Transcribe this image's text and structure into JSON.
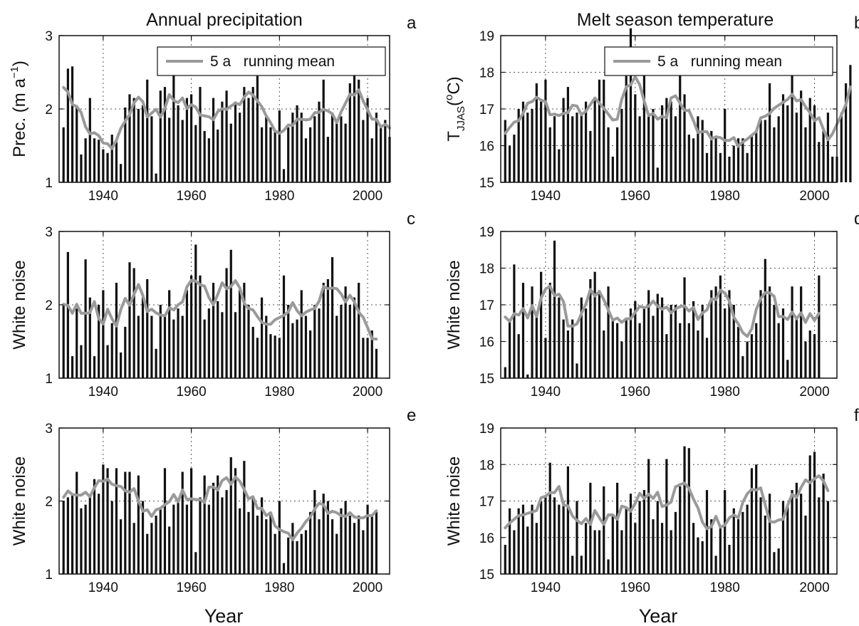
{
  "column_titles": [
    "Annual precipitation",
    "Melt season temperature"
  ],
  "x_axis_label": "Year",
  "legend": {
    "label": "5 a   running mean",
    "color": "#9a9a9a"
  },
  "colors": {
    "bar": "#111111",
    "mean_line": "#9a9a9a",
    "grid": "#555555",
    "frame": "#111111"
  },
  "chart_data": [
    {
      "panel": "a",
      "type": "bar",
      "col": 0,
      "row": 0,
      "ylabel": "Prec. (m a−1)",
      "ylabel_main": "Prec. (m a",
      "ylabel_sup": "−1",
      "ylabel_end": ")",
      "ylim": [
        1,
        3
      ],
      "yticks": [
        1,
        2,
        3
      ],
      "xlim": [
        1930,
        2005
      ],
      "xticks": [
        1940,
        1960,
        1980,
        2000
      ],
      "grid": true,
      "legend": "top-right",
      "series": [
        {
          "name": "Annual precipitation",
          "x_start": 1931,
          "values": [
            1.75,
            2.55,
            2.58,
            2.05,
            1.38,
            1.6,
            2.15,
            1.6,
            1.58,
            1.45,
            1.4,
            1.65,
            1.55,
            1.25,
            2.02,
            2.2,
            2.15,
            2.0,
            2.05,
            2.4,
            1.9,
            1.12,
            2.25,
            2.3,
            1.88,
            2.5,
            2.05,
            1.85,
            2.15,
            2.2,
            1.78,
            2.3,
            1.7,
            1.6,
            2.15,
            1.72,
            2.1,
            2.25,
            1.8,
            2.1,
            1.95,
            2.3,
            2.15,
            2.3,
            2.45,
            1.75,
            1.9,
            1.75,
            1.68,
            1.98,
            1.18,
            1.75,
            1.95,
            2.05,
            1.95,
            1.6,
            1.75,
            1.9,
            2.1,
            2.4,
            1.62,
            1.95,
            1.8,
            1.9,
            1.8,
            2.35,
            2.55,
            2.4,
            1.85,
            2.15,
            1.6,
            1.95,
            1.75,
            1.85,
            1.62
          ]
        }
      ]
    },
    {
      "panel": "b",
      "type": "bar",
      "col": 1,
      "row": 0,
      "ylabel": "TJJAS(°C)",
      "ylabel_main": "T",
      "ylabel_sub": "JJAS",
      "ylabel_end": "(°C)",
      "ylabel_super": "o",
      "ylim": [
        15,
        19
      ],
      "yticks": [
        15,
        16,
        17,
        18,
        19
      ],
      "xlim": [
        1930,
        2005
      ],
      "xticks": [
        1940,
        1960,
        1980,
        2000
      ],
      "grid": true,
      "legend": "top-right",
      "series": [
        {
          "name": "Melt season temperature",
          "x_start": 1931,
          "values": [
            16.7,
            16.0,
            16.3,
            17.0,
            17.2,
            16.9,
            17.0,
            17.7,
            17.2,
            17.8,
            16.5,
            16.8,
            15.9,
            17.3,
            17.6,
            16.8,
            16.9,
            16.9,
            17.2,
            16.4,
            17.3,
            17.8,
            17.8,
            16.5,
            15.7,
            16.5,
            17.0,
            17.9,
            19.2,
            17.4,
            16.8,
            18.1,
            16.8,
            17.0,
            15.4,
            17.1,
            17.3,
            17.2,
            16.8,
            18.1,
            17.4,
            16.3,
            16.2,
            16.8,
            16.7,
            15.8,
            16.4,
            16.2,
            15.8,
            17.0,
            15.7,
            16.0,
            16.2,
            16.2,
            15.8,
            16.3,
            16.4,
            16.7,
            16.7,
            17.7,
            16.5,
            16.8,
            17.4,
            17.1,
            18.1,
            16.9,
            17.5,
            16.5,
            17.3,
            17.1,
            16.1,
            16.4,
            16.9,
            15.7,
            15.7,
            16.9,
            17.7,
            18.2
          ]
        }
      ]
    },
    {
      "panel": "c",
      "type": "bar",
      "col": 0,
      "row": 1,
      "ylabel": "White noise",
      "ylim": [
        1,
        3
      ],
      "yticks": [
        1,
        2,
        3
      ],
      "xlim": [
        1930,
        2005
      ],
      "xticks": [
        1940,
        1960,
        1980,
        2000
      ],
      "grid": true,
      "series": [
        {
          "name": "White noise",
          "x_start": 1931,
          "values": [
            2.0,
            2.72,
            1.3,
            1.95,
            1.45,
            2.62,
            2.1,
            1.3,
            2.0,
            2.2,
            1.45,
            1.75,
            2.3,
            1.35,
            1.7,
            2.58,
            2.5,
            1.85,
            2.1,
            2.35,
            1.85,
            1.4,
            2.0,
            1.85,
            2.2,
            1.8,
            1.95,
            1.85,
            2.2,
            2.4,
            2.82,
            2.4,
            1.8,
            1.95,
            2.3,
            2.05,
            1.9,
            2.5,
            2.75,
            1.9,
            2.2,
            2.3,
            2.0,
            1.7,
            1.55,
            2.1,
            1.85,
            1.6,
            1.58,
            1.55,
            2.4,
            2.0,
            1.75,
            1.8,
            2.2,
            1.85,
            1.65,
            2.0,
            1.95,
            2.3,
            2.35,
            2.65,
            1.85,
            2.0,
            2.25,
            2.0,
            2.1,
            2.3,
            1.55,
            1.55,
            1.65,
            1.4
          ]
        }
      ]
    },
    {
      "panel": "d",
      "type": "bar",
      "col": 1,
      "row": 1,
      "ylabel": "White noise",
      "ylim": [
        15,
        19
      ],
      "yticks": [
        15,
        16,
        17,
        18,
        19
      ],
      "xlim": [
        1930,
        2005
      ],
      "xticks": [
        1940,
        1960,
        1980,
        2000
      ],
      "grid": true,
      "series": [
        {
          "name": "White noise",
          "x_start": 1931,
          "values": [
            15.3,
            16.6,
            18.1,
            16.2,
            17.6,
            15.1,
            17.5,
            16.8,
            17.9,
            16.1,
            17.6,
            18.75,
            17.2,
            16.6,
            16.3,
            16.6,
            15.4,
            17.2,
            16.9,
            17.7,
            17.9,
            17.4,
            16.3,
            17.5,
            16.6,
            16.5,
            16.0,
            16.6,
            16.9,
            17.1,
            16.5,
            16.9,
            17.4,
            16.7,
            17.3,
            17.2,
            16.2,
            17.0,
            17.0,
            16.5,
            17.75,
            16.5,
            17.1,
            16.3,
            17.0,
            16.1,
            17.4,
            17.5,
            17.8,
            16.9,
            17.4,
            17.0,
            16.4,
            15.6,
            16.0,
            16.2,
            16.5,
            17.4,
            18.25,
            17.5,
            17.0,
            16.5,
            16.9,
            15.5,
            17.5,
            16.6,
            17.5,
            16.0,
            16.3,
            16.2,
            17.8
          ]
        }
      ]
    },
    {
      "panel": "e",
      "type": "bar",
      "col": 0,
      "row": 2,
      "ylabel": "White noise",
      "ylim": [
        1,
        3
      ],
      "yticks": [
        1,
        2,
        3
      ],
      "xlim": [
        1930,
        2005
      ],
      "xticks": [
        1940,
        1960,
        1980,
        2000
      ],
      "grid": true,
      "series": [
        {
          "name": "White noise",
          "x_start": 1931,
          "values": [
            2.0,
            2.05,
            2.1,
            2.4,
            1.9,
            1.95,
            2.05,
            2.3,
            2.1,
            2.5,
            2.45,
            2.0,
            2.45,
            1.75,
            2.4,
            2.4,
            1.7,
            2.35,
            2.0,
            1.55,
            1.7,
            1.8,
            1.9,
            2.45,
            1.65,
            1.95,
            2.0,
            2.4,
            1.95,
            2.45,
            1.3,
            2.05,
            2.35,
            1.95,
            2.25,
            2.35,
            2.05,
            2.15,
            2.6,
            2.45,
            1.9,
            2.55,
            1.85,
            2.05,
            1.8,
            2.05,
            1.75,
            1.85,
            1.55,
            2.0,
            1.15,
            1.5,
            1.7,
            1.45,
            1.55,
            1.6,
            1.85,
            2.15,
            1.75,
            2.1,
            2.0,
            1.75,
            1.55,
            1.9,
            2.0,
            1.8,
            1.7,
            1.8,
            1.6,
            1.95,
            1.8,
            1.85
          ]
        }
      ]
    },
    {
      "panel": "f",
      "type": "bar",
      "col": 1,
      "row": 2,
      "ylabel": "White noise",
      "ylim": [
        15,
        19
      ],
      "yticks": [
        15,
        16,
        17,
        18,
        19
      ],
      "xlim": [
        1930,
        2005
      ],
      "xticks": [
        1940,
        1960,
        1980,
        2000
      ],
      "grid": true,
      "series": [
        {
          "name": "White noise",
          "x_start": 1931,
          "values": [
            15.8,
            16.8,
            16.2,
            16.8,
            16.9,
            16.3,
            16.9,
            16.4,
            17.0,
            17.1,
            18.05,
            17.1,
            16.9,
            17.0,
            17.95,
            15.5,
            17.0,
            15.5,
            16.4,
            17.5,
            16.2,
            16.2,
            17.4,
            15.4,
            16.6,
            17.5,
            16.2,
            16.8,
            17.2,
            16.4,
            17.0,
            17.3,
            18.15,
            16.5,
            17.0,
            16.4,
            18.15,
            16.2,
            16.7,
            17.4,
            18.5,
            18.45,
            16.4,
            16.0,
            15.9,
            17.3,
            16.5,
            15.5,
            16.3,
            17.3,
            15.8,
            16.8,
            16.5,
            16.7,
            16.9,
            17.9,
            18.0,
            17.1,
            16.6,
            17.2,
            15.6,
            15.7,
            17.0,
            16.9,
            17.3,
            17.5,
            17.2,
            16.6,
            18.25,
            18.35,
            17.1,
            17.75,
            17.0
          ]
        }
      ]
    }
  ]
}
